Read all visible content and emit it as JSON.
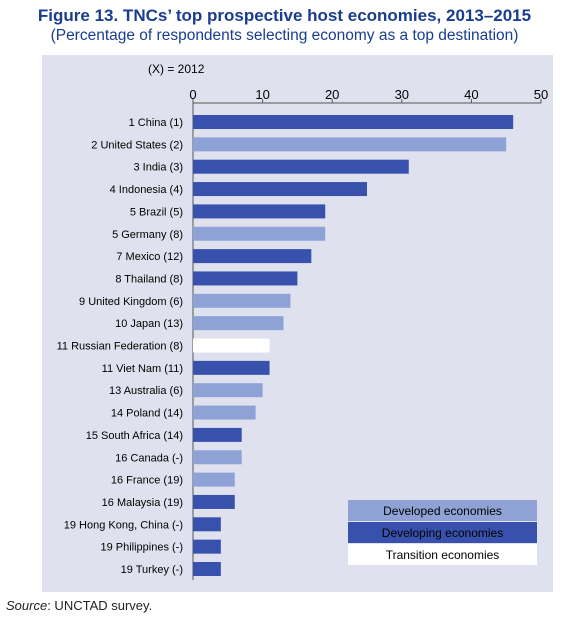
{
  "title": "Figure 13. TNCs’ top prospective host economies, 2013–2015",
  "subtitle": "(Percentage of respondents selecting economy as a top destination)",
  "note": "(X) = 2012",
  "source_label": "Source",
  "source_text": ": UNCTAD survey.",
  "colors": {
    "developed": "#8fa2d6",
    "developing": "#3751ad",
    "transition": "#ffffff",
    "panel": "#dfe2ee",
    "title": "#1a3d8f"
  },
  "chart_data": {
    "type": "bar",
    "orientation": "horizontal",
    "xlim": [
      0,
      50
    ],
    "xticks": [
      0,
      10,
      20,
      30,
      40,
      50
    ],
    "grid": false,
    "legend_position": "bottom-right",
    "legend": [
      {
        "key": "developed",
        "label": "Developed economies"
      },
      {
        "key": "developing",
        "label": "Developing economies"
      },
      {
        "key": "transition",
        "label": "Transition economies"
      }
    ],
    "categories": [
      "1 China (1)",
      "2 United States (2)",
      "3 India (3)",
      "4 Indonesia (4)",
      "5 Brazil (5)",
      "5 Germany (8)",
      "7 Mexico (12)",
      "8 Thailand (8)",
      "9 United Kingdom (6)",
      "10 Japan (13)",
      "11 Russian Federation (8)",
      "11 Viet Nam (11)",
      "13 Australia (6)",
      "14 Poland (14)",
      "15 South Africa (14)",
      "16 Canada (-)",
      "16 France (19)",
      "16 Malaysia (19)",
      "19 Hong Kong, China (-)",
      "19 Philippines (-)",
      "19 Turkey (-)"
    ],
    "values": [
      46,
      45,
      31,
      25,
      19,
      19,
      17,
      15,
      14,
      13,
      11,
      11,
      10,
      9,
      7,
      7,
      6,
      6,
      4,
      4,
      4
    ],
    "groups": [
      "developing",
      "developed",
      "developing",
      "developing",
      "developing",
      "developed",
      "developing",
      "developing",
      "developed",
      "developed",
      "transition",
      "developing",
      "developed",
      "developed",
      "developing",
      "developed",
      "developed",
      "developing",
      "developing",
      "developing",
      "developing"
    ]
  }
}
